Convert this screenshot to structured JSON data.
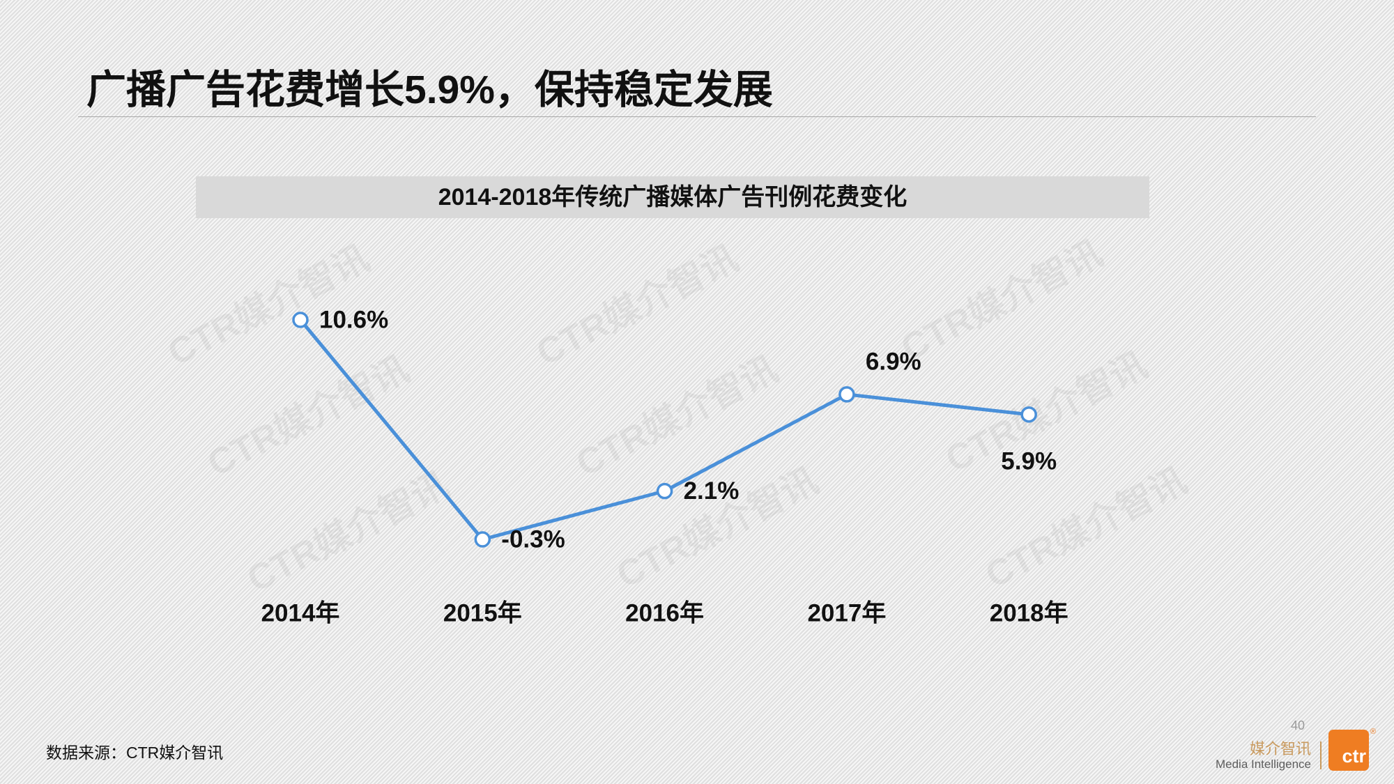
{
  "slide": {
    "title": "广播广告花费增长5.9%，保持稳定发展",
    "source_note": "数据来源：CTR媒介智讯",
    "page_number": "40"
  },
  "watermark": "CTR媒介智讯",
  "logo": {
    "name_cn": "媒介智讯",
    "name_en": "Media Intelligence",
    "mark": "ctr",
    "registered": "®"
  },
  "colors": {
    "line": "#4a90d9",
    "marker_fill": "#ffffff",
    "title_bar": "#d9d9d9",
    "brand_orange": "#ef7d22",
    "brand_tan": "#c99a5e"
  },
  "chart_data": {
    "type": "line",
    "title": "2014-2018年传统广播媒体广告刊例花费变化",
    "categories": [
      "2014年",
      "2015年",
      "2016年",
      "2017年",
      "2018年"
    ],
    "values": [
      10.6,
      -0.3,
      2.1,
      6.9,
      5.9
    ],
    "unit": "%",
    "label_positions": [
      "right",
      "right",
      "right",
      "top-right",
      "bottom"
    ],
    "xlabel": "",
    "ylabel": "",
    "grid": false,
    "legend": "none",
    "markers": "hollow-circle"
  }
}
